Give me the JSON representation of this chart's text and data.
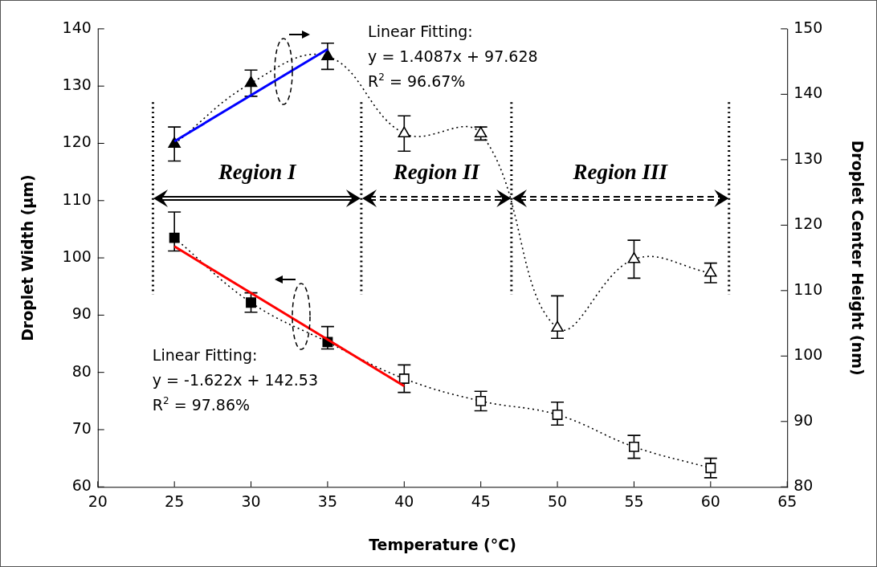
{
  "chart_data": {
    "type": "line",
    "xlabel": "Temperature (°C)",
    "ylabel": "Droplet Width (μm)",
    "y2label": "Droplet Center Height (nm)",
    "x": [
      25,
      30,
      35,
      40,
      45,
      50,
      55,
      60
    ],
    "xlim": [
      20,
      65
    ],
    "xticks": [
      20,
      25,
      30,
      35,
      40,
      45,
      50,
      55,
      60,
      65
    ],
    "ylim": [
      60,
      140
    ],
    "yticks": [
      60,
      70,
      80,
      90,
      100,
      110,
      120,
      130,
      140
    ],
    "y2lim": [
      80,
      150
    ],
    "y2ticks": [
      80,
      90,
      100,
      110,
      120,
      130,
      140,
      150
    ],
    "grid": false,
    "legend": false,
    "series": [
      {
        "axis": "y",
        "color": "#000000",
        "marker": "square",
        "line_style": "dotted",
        "values": [
          103.5,
          92.2,
          85.3,
          78.9,
          75.0,
          72.6,
          67.0,
          63.3
        ],
        "errors": [
          [
            101.2,
            108.0
          ],
          1.7,
          [
            84.1,
            88.0
          ],
          2.4,
          1.7,
          [
            70.8,
            74.8
          ],
          2.0,
          1.7
        ]
      },
      {
        "axis": "y2",
        "color": "#000000",
        "marker": "triangle",
        "line_style": "dotted",
        "values": [
          132.4,
          141.7,
          145.8,
          134.0,
          134.0,
          104.3,
          114.8,
          112.7
        ],
        "errors": [
          2.6,
          2.0,
          2.0,
          2.7,
          1.0,
          [
            102.7,
            109.2
          ],
          2.9,
          1.5
        ]
      },
      {
        "axis": "y",
        "color": "#ff0000",
        "marker": "none",
        "line_style": "solid",
        "x": [
          25,
          40
        ],
        "values": [
          102.0,
          77.6
        ]
      },
      {
        "axis": "y2",
        "color": "#0000ff",
        "marker": "none",
        "line_style": "solid",
        "x": [
          25,
          35
        ],
        "values": [
          132.8,
          146.9
        ]
      }
    ],
    "ref_lines": [
      {
        "axis": "x",
        "value": 23.6,
        "line_style": "dotted",
        "color": "#000000"
      },
      {
        "axis": "x",
        "value": 37.2,
        "line_style": "dotted",
        "color": "#000000"
      },
      {
        "axis": "x",
        "value": 47.0,
        "line_style": "dotted",
        "color": "#000000"
      },
      {
        "axis": "x",
        "value": 61.2,
        "line_style": "dotted",
        "color": "#000000"
      }
    ],
    "annotations": [
      "Linear Fitting:\ny = 1.4087x + 97.628\nR$^{2}$ = 96.67%",
      "Linear Fitting:\ny = -1.622x + 142.53\nR$^{2}$ = 97.86%",
      "Region I",
      "Region II",
      "Region III"
    ]
  }
}
